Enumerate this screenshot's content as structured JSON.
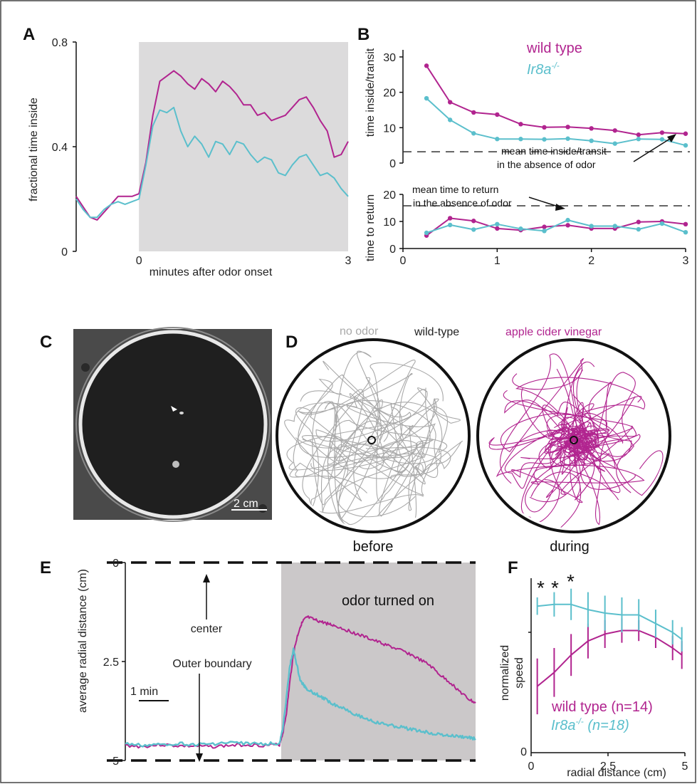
{
  "colors": {
    "wild_type": "#b1248f",
    "ir8a": "#5bbfcc",
    "shade": "#dcdbdc",
    "shade_dark": "#cbc8c9",
    "gray_track": "#a9a9a9"
  },
  "panels": {
    "A": "A",
    "B": "B",
    "C": "C",
    "D": "D",
    "E": "E",
    "F": "F"
  },
  "panelD": {
    "title": "wild-type",
    "left_label": "no odor",
    "right_label": "apple cider vinegar",
    "left_caption": "before",
    "right_caption": "during"
  },
  "panelC": {
    "scale_label": "2 cm"
  },
  "chart_data": [
    {
      "id": "A",
      "type": "line",
      "xlabel": "minutes after odor onset",
      "ylabel": "fractional time inside",
      "x_ticks": [
        "0",
        "3"
      ],
      "y_ticks": [
        "0",
        "0.4",
        "0.8"
      ],
      "xlim": [
        -0.9,
        3
      ],
      "ylim": [
        0,
        0.8
      ],
      "odor_shading": [
        0,
        3
      ],
      "series": [
        {
          "name": "wild type",
          "color": "#b1248f",
          "x": [
            -0.9,
            -0.8,
            -0.7,
            -0.6,
            -0.5,
            -0.4,
            -0.3,
            -0.2,
            -0.1,
            0,
            0.1,
            0.2,
            0.3,
            0.4,
            0.5,
            0.6,
            0.7,
            0.8,
            0.9,
            1.0,
            1.1,
            1.2,
            1.3,
            1.4,
            1.5,
            1.6,
            1.7,
            1.8,
            1.9,
            2.0,
            2.1,
            2.2,
            2.3,
            2.4,
            2.5,
            2.6,
            2.7,
            2.8,
            2.9,
            3.0
          ],
          "y": [
            0.21,
            0.17,
            0.13,
            0.12,
            0.15,
            0.18,
            0.21,
            0.21,
            0.21,
            0.22,
            0.34,
            0.52,
            0.65,
            0.67,
            0.69,
            0.67,
            0.64,
            0.62,
            0.66,
            0.64,
            0.61,
            0.65,
            0.63,
            0.6,
            0.56,
            0.56,
            0.52,
            0.53,
            0.5,
            0.51,
            0.52,
            0.55,
            0.58,
            0.59,
            0.55,
            0.5,
            0.46,
            0.36,
            0.37,
            0.42
          ]
        },
        {
          "name": "Ir8a-/-",
          "color": "#5bbfcc",
          "x": [
            -0.9,
            -0.8,
            -0.7,
            -0.6,
            -0.5,
            -0.4,
            -0.3,
            -0.2,
            -0.1,
            0,
            0.1,
            0.2,
            0.3,
            0.4,
            0.5,
            0.6,
            0.7,
            0.8,
            0.9,
            1.0,
            1.1,
            1.2,
            1.3,
            1.4,
            1.5,
            1.6,
            1.7,
            1.8,
            1.9,
            2.0,
            2.1,
            2.2,
            2.3,
            2.4,
            2.5,
            2.6,
            2.7,
            2.8,
            2.9,
            3.0
          ],
          "y": [
            0.2,
            0.16,
            0.13,
            0.13,
            0.16,
            0.18,
            0.19,
            0.18,
            0.19,
            0.2,
            0.33,
            0.48,
            0.54,
            0.53,
            0.55,
            0.46,
            0.4,
            0.44,
            0.41,
            0.36,
            0.42,
            0.41,
            0.37,
            0.42,
            0.41,
            0.37,
            0.34,
            0.36,
            0.35,
            0.3,
            0.29,
            0.33,
            0.36,
            0.37,
            0.33,
            0.29,
            0.3,
            0.28,
            0.24,
            0.21
          ]
        }
      ]
    },
    {
      "id": "B-top",
      "type": "line",
      "ylabel": "time inside/transit",
      "y_ticks": [
        "0",
        "10",
        "20",
        "30"
      ],
      "ylim": [
        0,
        32
      ],
      "xlim": [
        0,
        3
      ],
      "baseline": 3.2,
      "baseline_note": [
        "mean time inside/transit",
        "in the absence of odor"
      ],
      "series": [
        {
          "name": "wild type",
          "color": "#b1248f",
          "x": [
            0.25,
            0.5,
            0.75,
            1.0,
            1.25,
            1.5,
            1.75,
            2.0,
            2.25,
            2.5,
            2.75,
            3.0
          ],
          "y": [
            27.5,
            17.2,
            14.3,
            13.7,
            11.0,
            10.1,
            10.2,
            9.8,
            9.2,
            8.0,
            8.6,
            8.3
          ]
        },
        {
          "name": "Ir8a-/-",
          "color": "#5bbfcc",
          "x": [
            0.25,
            0.5,
            0.75,
            1.0,
            1.25,
            1.5,
            1.75,
            2.0,
            2.25,
            2.5,
            2.75,
            3.0
          ],
          "y": [
            18.3,
            12.2,
            8.4,
            6.8,
            6.8,
            6.7,
            6.9,
            6.3,
            5.5,
            6.8,
            6.7,
            5.0
          ]
        }
      ]
    },
    {
      "id": "B-bottom",
      "type": "line",
      "ylabel": "time to return",
      "y_ticks": [
        "0",
        "10",
        "20"
      ],
      "x_ticks": [
        "0",
        "1",
        "2",
        "3"
      ],
      "ylim": [
        0,
        20
      ],
      "xlim": [
        0,
        3
      ],
      "baseline": 15.8,
      "baseline_note": [
        "mean time to return",
        "in the absence of odor"
      ],
      "series": [
        {
          "name": "wild type",
          "color": "#b1248f",
          "x": [
            0.25,
            0.5,
            0.75,
            1.0,
            1.25,
            1.5,
            1.75,
            2.0,
            2.25,
            2.5,
            2.75,
            3.0
          ],
          "y": [
            4.8,
            11.2,
            10.2,
            7.4,
            6.8,
            8.0,
            8.6,
            7.4,
            7.4,
            9.8,
            10.0,
            9.0
          ]
        },
        {
          "name": "Ir8a-/-",
          "color": "#5bbfcc",
          "x": [
            0.25,
            0.5,
            0.75,
            1.0,
            1.25,
            1.5,
            1.75,
            2.0,
            2.25,
            2.5,
            2.75,
            3.0
          ],
          "y": [
            5.8,
            8.7,
            7.0,
            9.0,
            7.3,
            6.5,
            10.5,
            8.3,
            8.3,
            7.1,
            9.2,
            6.0
          ]
        }
      ]
    },
    {
      "id": "E",
      "type": "line",
      "ylabel": "average radial distance (cm)",
      "y_ticks": [
        "0",
        "2.5",
        "5"
      ],
      "ylim": [
        5,
        0
      ],
      "xlim": [
        0,
        10
      ],
      "odor_shading": [
        4.45,
        10
      ],
      "shade_label": "odor turned on",
      "scale_bar": "1 min",
      "annotations": [
        "center",
        "Outer boundary"
      ],
      "series": [
        {
          "name": "wild type",
          "color": "#b1248f",
          "x": [
            0,
            0.5,
            1,
            1.5,
            2,
            2.5,
            3,
            3.5,
            4,
            4.4,
            4.5,
            4.6,
            4.7,
            4.8,
            4.9,
            5.0,
            5.1,
            5.2,
            5.4,
            5.6,
            5.8,
            6.0,
            6.3,
            6.6,
            6.9,
            7.2,
            7.5,
            7.8,
            8.1,
            8.4,
            8.7,
            9.0,
            9.3,
            9.6,
            9.8,
            10
          ],
          "y": [
            4.62,
            4.65,
            4.6,
            4.63,
            4.64,
            4.65,
            4.62,
            4.6,
            4.62,
            4.6,
            4.3,
            3.8,
            3.0,
            2.3,
            1.9,
            1.6,
            1.45,
            1.38,
            1.45,
            1.5,
            1.55,
            1.6,
            1.7,
            1.8,
            1.9,
            2.0,
            2.1,
            2.2,
            2.3,
            2.45,
            2.6,
            2.85,
            3.05,
            3.3,
            3.45,
            3.55
          ]
        },
        {
          "name": "Ir8a-/-",
          "color": "#5bbfcc",
          "x": [
            0,
            0.5,
            1,
            1.5,
            2,
            2.5,
            3,
            3.5,
            4,
            4.4,
            4.5,
            4.6,
            4.7,
            4.8,
            4.9,
            5.0,
            5.1,
            5.2,
            5.4,
            5.6,
            5.8,
            6.0,
            6.3,
            6.6,
            6.9,
            7.2,
            7.5,
            7.8,
            8.1,
            8.4,
            8.7,
            9.0,
            9.3,
            9.6,
            9.8,
            10
          ],
          "y": [
            4.58,
            4.62,
            4.6,
            4.57,
            4.6,
            4.58,
            4.55,
            4.57,
            4.58,
            4.56,
            4.2,
            3.4,
            2.6,
            2.2,
            2.6,
            3.0,
            3.1,
            3.2,
            3.3,
            3.4,
            3.5,
            3.6,
            3.7,
            3.85,
            3.95,
            4.05,
            4.1,
            4.15,
            4.2,
            4.25,
            4.3,
            4.35,
            4.38,
            4.4,
            4.42,
            4.45
          ]
        }
      ]
    },
    {
      "id": "F",
      "type": "line",
      "xlabel": "radial distance (cm)",
      "ylabel": "normalized speed",
      "x_ticks": [
        "0",
        "2.5",
        "5"
      ],
      "y_ticks": [
        "0"
      ],
      "xlim": [
        0,
        5
      ],
      "ylim": [
        0,
        1
      ],
      "significance": [
        "*",
        "*",
        "*"
      ],
      "legend": [
        "wild type (n=14)",
        "Ir8a-/-  (n=18)"
      ],
      "series": [
        {
          "name": "wild type (n=14)",
          "color": "#b1248f",
          "x": [
            0.2,
            0.75,
            1.3,
            1.85,
            2.4,
            2.95,
            3.5,
            4.05,
            4.6,
            4.9
          ],
          "y": [
            0.38,
            0.46,
            0.56,
            0.64,
            0.68,
            0.7,
            0.7,
            0.66,
            0.6,
            0.56
          ],
          "err": [
            0.16,
            0.14,
            0.12,
            0.1,
            0.08,
            0.07,
            0.06,
            0.06,
            0.07,
            0.08
          ]
        },
        {
          "name": "Ir8a-/-  (n=18)",
          "color": "#5bbfcc",
          "x": [
            0.2,
            0.75,
            1.3,
            1.85,
            2.4,
            2.95,
            3.5,
            4.05,
            4.6,
            4.9
          ],
          "y": [
            0.84,
            0.85,
            0.85,
            0.82,
            0.8,
            0.79,
            0.79,
            0.74,
            0.69,
            0.65
          ],
          "err": [
            0.05,
            0.07,
            0.09,
            0.1,
            0.1,
            0.1,
            0.09,
            0.08,
            0.07,
            0.07
          ]
        }
      ]
    }
  ]
}
